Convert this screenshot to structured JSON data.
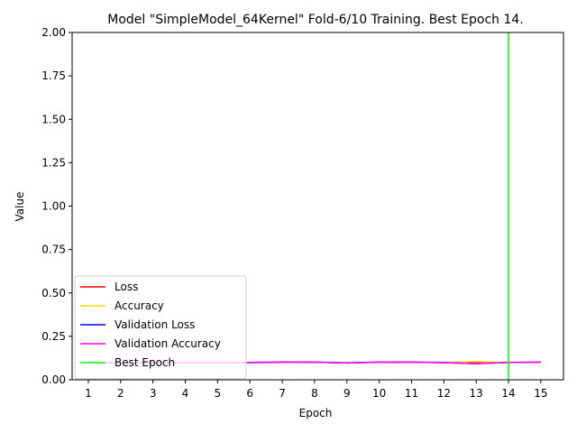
{
  "chart_data": {
    "type": "line",
    "title": "Model \"SimpleModel_64Kernel\" Fold-6/10 Training. Best Epoch 14.",
    "xlabel": "Epoch",
    "ylabel": "Value",
    "x": [
      1,
      2,
      3,
      4,
      5,
      6,
      7,
      8,
      9,
      10,
      11,
      12,
      13,
      14,
      15
    ],
    "x_ticks": [
      "1",
      "2",
      "3",
      "4",
      "5",
      "6",
      "7",
      "8",
      "9",
      "10",
      "11",
      "12",
      "13",
      "14",
      "15"
    ],
    "xlim": [
      0.5,
      15.7
    ],
    "ylim": [
      0,
      2
    ],
    "y_ticks": [
      "0.00",
      "0.25",
      "0.50",
      "0.75",
      "1.00",
      "1.25",
      "1.50",
      "1.75",
      "2.00"
    ],
    "grid": false,
    "legend_position": "lower-left",
    "series": [
      {
        "name": "Loss",
        "color": "#ff0000",
        "values": [
          0.099,
          0.1,
          0.099,
          0.098,
          0.098,
          0.1,
          0.102,
          0.101,
          0.098,
          0.101,
          0.101,
          0.1,
          0.097,
          0.1,
          0.1
        ]
      },
      {
        "name": "Accuracy",
        "color": "#ffd700",
        "values": [
          0.1,
          0.1,
          0.099,
          0.099,
          0.098,
          0.1,
          0.103,
          0.101,
          0.098,
          0.101,
          0.101,
          0.1,
          0.105,
          0.099,
          0.1
        ]
      },
      {
        "name": "Validation Loss",
        "color": "#0000ff",
        "values": [
          0.099,
          0.099,
          0.099,
          0.098,
          0.097,
          0.099,
          0.101,
          0.101,
          0.097,
          0.101,
          0.101,
          0.099,
          0.093,
          0.1,
          0.101
        ]
      },
      {
        "name": "Validation  Accuracy",
        "color": "#ff00ff",
        "values": [
          0.1,
          0.1,
          0.099,
          0.099,
          0.098,
          0.1,
          0.102,
          0.101,
          0.097,
          0.101,
          0.101,
          0.099,
          0.093,
          0.1,
          0.101
        ]
      }
    ],
    "best_epoch": {
      "name": "Best Epoch",
      "x": 14,
      "color": "#00ff00"
    }
  }
}
